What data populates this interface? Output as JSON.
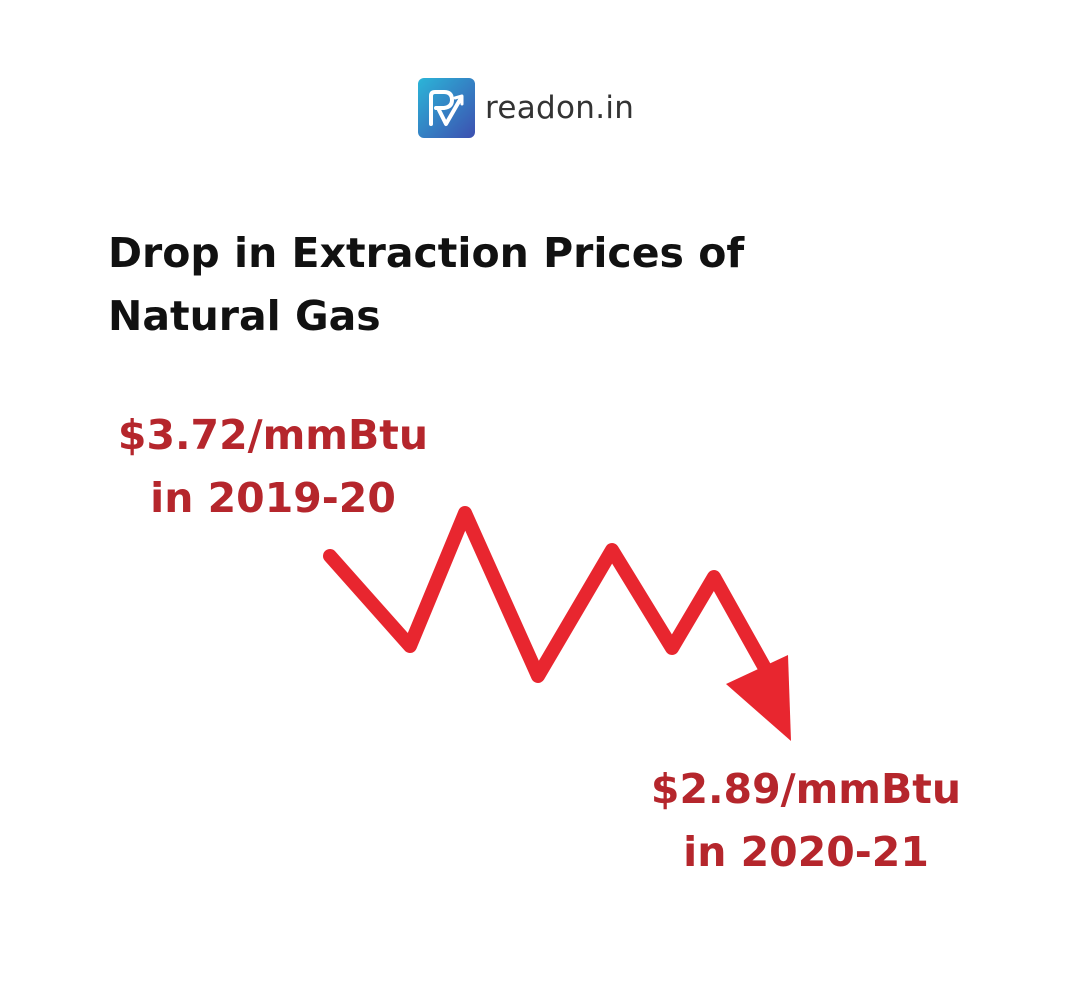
{
  "brand": {
    "name": "readon.in",
    "logo_colors": [
      "#2bb5d8",
      "#3d4fb0"
    ]
  },
  "title": "Drop in Extraction Prices of Natural Gas",
  "trend": {
    "direction": "down",
    "arrow_color": "#e8262f",
    "start": {
      "price": "$3.72/mmBtu",
      "period": "in 2019-20"
    },
    "end": {
      "price": "$2.89/mmBtu",
      "period": "in 2020-21"
    }
  },
  "text_color": "#b5262c"
}
